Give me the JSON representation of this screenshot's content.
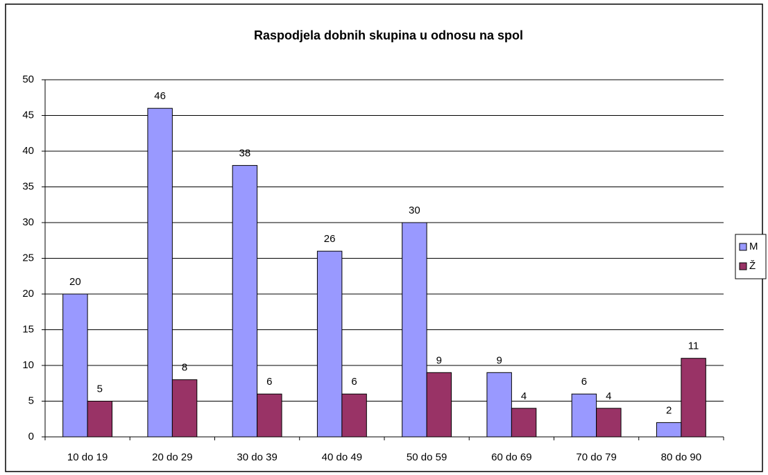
{
  "chart_data": {
    "type": "bar",
    "title": "Raspodjela dobnih skupina u odnosu na spol",
    "categories": [
      "10 do 19",
      "20 do 29",
      "30 do 39",
      "40 do 49",
      "50 do 59",
      "60 do 69",
      "70 do 79",
      "80 do 90"
    ],
    "series": [
      {
        "name": "M",
        "color": "#9999ff",
        "values": [
          20,
          46,
          38,
          26,
          30,
          9,
          6,
          2
        ]
      },
      {
        "name": "Ž",
        "color": "#993366",
        "values": [
          5,
          8,
          6,
          6,
          9,
          4,
          4,
          11
        ]
      }
    ],
    "ylim": [
      0,
      50
    ],
    "yticks": [
      0,
      5,
      10,
      15,
      20,
      25,
      30,
      35,
      40,
      45,
      50
    ],
    "grid": true,
    "legend": "right"
  }
}
